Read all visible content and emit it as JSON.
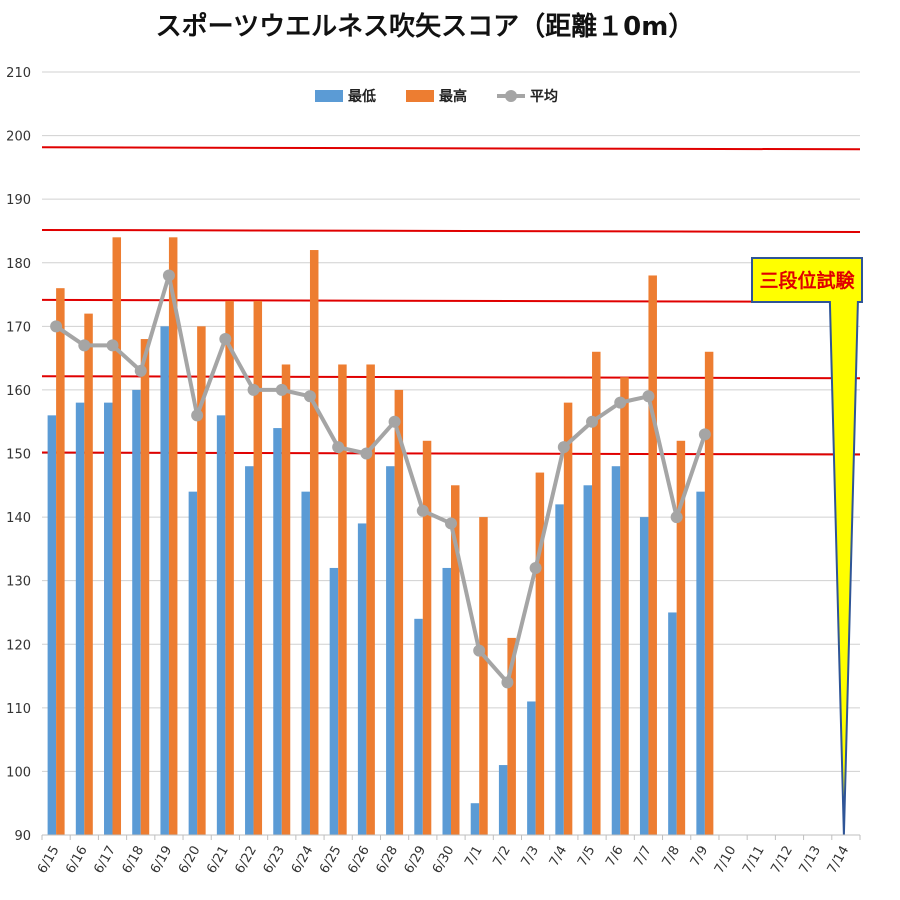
{
  "chart_data": {
    "type": "bar",
    "title": "スポーツウエルネス吹矢スコア（距離１0m）",
    "categories": [
      "6/15",
      "6/16",
      "6/17",
      "6/18",
      "6/19",
      "6/20",
      "6/21",
      "6/22",
      "6/23",
      "6/24",
      "6/25",
      "6/26",
      "6/28",
      "6/29",
      "6/30",
      "7/1",
      "7/2",
      "7/3",
      "7/4",
      "7/5",
      "7/6",
      "7/7",
      "7/8",
      "7/9",
      "7/10",
      "7/11",
      "7/12",
      "7/13",
      "7/14"
    ],
    "series": [
      {
        "name": "最低",
        "type": "bar",
        "color": "#5b9bd5",
        "values": [
          156,
          158,
          158,
          160,
          170,
          144,
          156,
          148,
          154,
          144,
          132,
          139,
          148,
          124,
          132,
          95,
          101,
          111,
          142,
          145,
          148,
          140,
          125,
          144,
          null,
          null,
          null,
          null,
          null
        ]
      },
      {
        "name": "最高",
        "type": "bar",
        "color": "#ed7d31",
        "values": [
          176,
          172,
          184,
          168,
          184,
          170,
          174,
          174,
          164,
          182,
          164,
          164,
          160,
          152,
          145,
          140,
          121,
          147,
          158,
          166,
          162,
          178,
          152,
          166,
          null,
          null,
          null,
          null,
          null
        ]
      },
      {
        "name": "平均",
        "type": "line",
        "color": "#a5a5a5",
        "values": [
          170,
          167,
          167,
          163,
          178,
          156,
          168,
          160,
          160,
          159,
          151,
          150,
          155,
          141,
          139,
          119,
          114,
          132,
          151,
          155,
          158,
          159,
          140,
          153,
          null,
          null,
          null,
          null,
          null
        ]
      }
    ],
    "ylim": [
      90,
      210
    ],
    "yticks": [
      90,
      100,
      110,
      120,
      130,
      140,
      150,
      160,
      170,
      180,
      190,
      200,
      210
    ],
    "reference_lines": [
      198,
      185,
      174,
      162,
      150
    ],
    "reference_line_color": "#e00000",
    "grid": true,
    "legend": "top-center",
    "annotation": {
      "text": "三段位試験",
      "target": "7/14",
      "fill": "#ffff00",
      "border": "#2f5597",
      "text_color": "#e00000"
    }
  }
}
